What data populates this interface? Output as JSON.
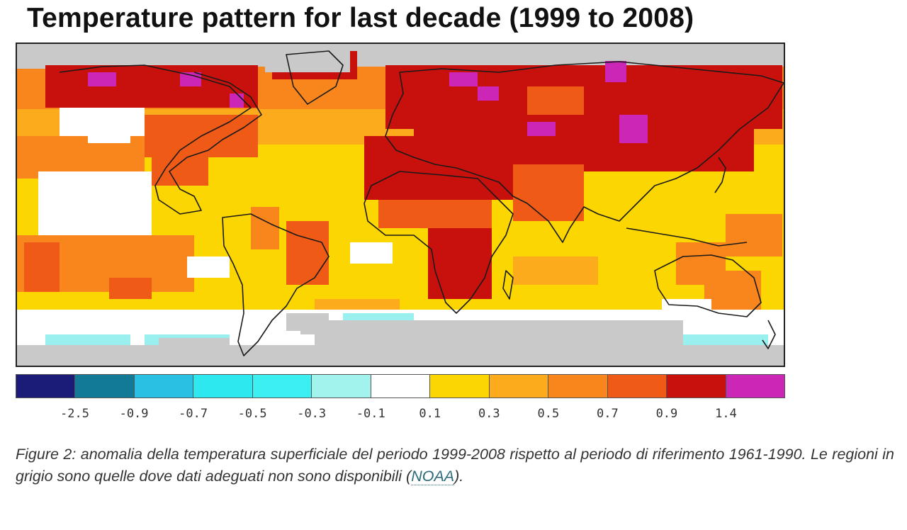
{
  "figure": {
    "title": "Temperature pattern for last decade (1999 to 2008)"
  },
  "map": {
    "category_colors": {
      "no_data": "#c9c9c9",
      "bin_-0.1_0.1": "#ffffff",
      "bin_-0.3_-0.1": "#99f0ee",
      "bin_0.1_0.3": "#fcd600",
      "bin_0.3_0.5": "#fbab1c",
      "bin_0.5_0.7": "#f8861c",
      "bin_0.7_0.9": "#ef5a17",
      "bin_0.9_1.4": "#c8110c",
      "bin_gt_1.4": "#cc26b6"
    },
    "outline_color": "#1a1a1a"
  },
  "legend": {
    "colors": [
      "#1b1c78",
      "#127a96",
      "#2ac0e4",
      "#2ee8f0",
      "#3cf0f2",
      "#a2f2ee",
      "#ffffff",
      "#fcd600",
      "#fbab1c",
      "#f8861c",
      "#ef5a17",
      "#c8110c",
      "#cc26b6"
    ],
    "ticks": [
      "-2.5",
      "-0.9",
      "-0.7",
      "-0.5",
      "-0.3",
      "-0.1",
      "0.1",
      "0.3",
      "0.5",
      "0.7",
      "0.9",
      "1.4"
    ]
  },
  "caption": {
    "text": "Figure 2: anomalia della temperatura superficiale del periodo 1999-2008 rispetto al periodo di riferimento 1961-1990. Le regioni in grigio sono quelle dove dati adeguati non sono disponibili (",
    "link_label": "NOAA",
    "text_end": ")."
  }
}
